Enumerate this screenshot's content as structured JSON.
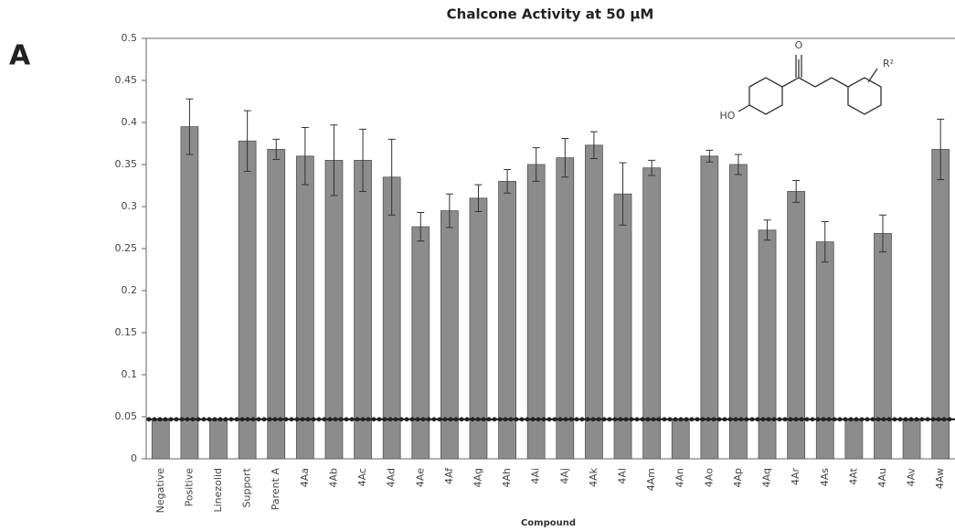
{
  "panel_label": "A",
  "chart_data": {
    "type": "bar",
    "title": "Chalcone Activity at 50 μM",
    "x_label": "Compound",
    "categories": [
      "Negative",
      "Positive",
      "Linezolid",
      "Support",
      "Parent A",
      "4Aa",
      "4Ab",
      "4Ac",
      "4Ad",
      "4Ae",
      "4Af",
      "4Ag",
      "4Ah",
      "4Ai",
      "4Aj",
      "4Ak",
      "4Al",
      "4Am",
      "4An",
      "4Ao",
      "4Ap",
      "4Aq",
      "4Ar",
      "4As",
      "4At",
      "4Au",
      "4Av",
      "4Aw"
    ],
    "values": [
      0.045,
      0.395,
      0.045,
      0.378,
      0.368,
      0.36,
      0.355,
      0.355,
      0.335,
      0.276,
      0.295,
      0.31,
      0.33,
      0.35,
      0.358,
      0.373,
      0.315,
      0.346,
      0.045,
      0.36,
      0.35,
      0.272,
      0.318,
      0.258,
      0.045,
      0.268,
      0.045,
      0.368
    ],
    "errors": [
      0,
      0.033,
      0,
      0.036,
      0.012,
      0.034,
      0.042,
      0.037,
      0.045,
      0.017,
      0.02,
      0.016,
      0.014,
      0.02,
      0.023,
      0.016,
      0.037,
      0.009,
      0,
      0.007,
      0.012,
      0.012,
      0.013,
      0.024,
      0,
      0.022,
      0,
      0.036
    ],
    "threshold": 0.047,
    "color": "#8c8c8c",
    "ylim": [
      0,
      0.5
    ],
    "yticks": [
      0,
      0.05,
      0.1,
      0.15,
      0.2,
      0.25,
      0.3,
      0.35,
      0.4,
      0.45,
      0.5
    ],
    "structure_labels": [
      "O",
      "HO",
      "R²"
    ]
  }
}
